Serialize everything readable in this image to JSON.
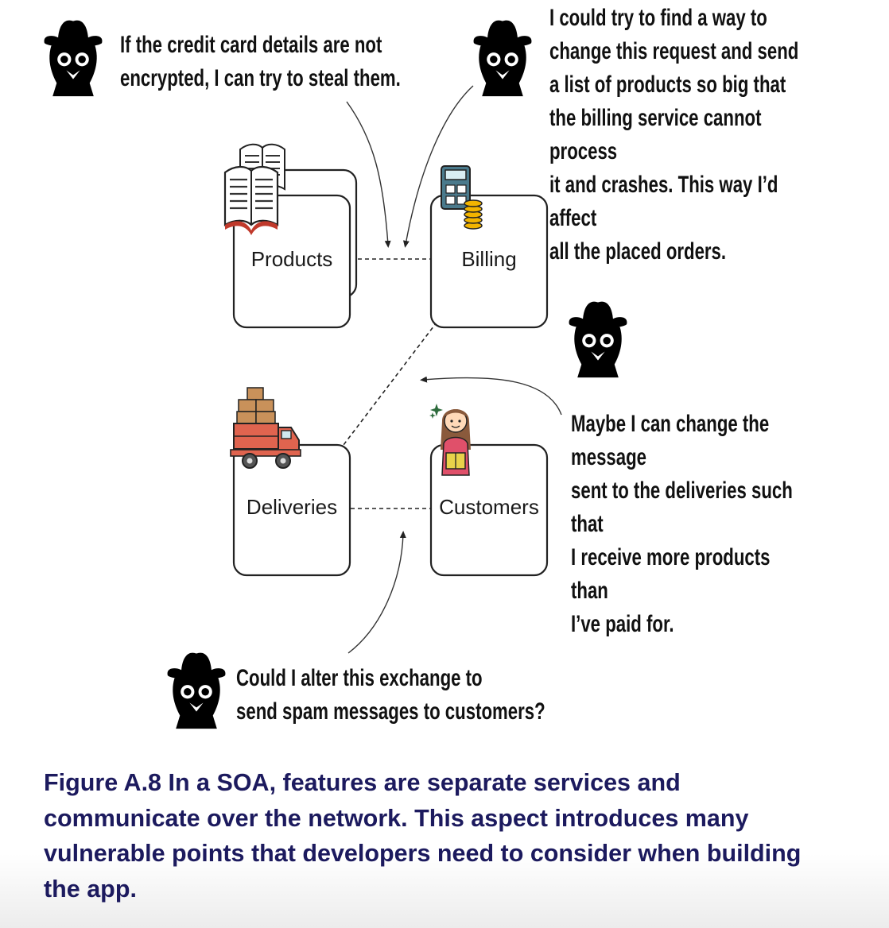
{
  "services": {
    "products": "Products",
    "billing": "Billing",
    "deliveries": "Deliveries",
    "customers": "Customers"
  },
  "notes": {
    "credit_card": "If the credit card details are not\nencrypted, I can try to steal them.",
    "billing_attack": "I could try to find a way to\nchange this request and send\na list of products so big that\nthe billing service cannot process\nit and crashes. This way I’d affect\nall the placed orders.",
    "deliveries_attack": "Maybe I can change the message\nsent to the deliveries such that\nI receive more products than\nI’ve paid for.",
    "spam_attack": "Could I alter this exchange to\nsend spam messages to customers?"
  },
  "icons": [
    "hacker-icon",
    "books-icon",
    "calculator-icon",
    "coins-icon",
    "truck-icon",
    "customer-icon",
    "sparkle-icon"
  ],
  "colors": {
    "caption": "#1c1a5e",
    "truck": "#e0644f",
    "boxes": "#c9915a",
    "coins": "#f2b400",
    "calculator": "#4a7a8c",
    "customer_shirt": "#e0506a"
  },
  "caption": "Figure A.8 In a SOA, features are separate services and communicate over the network. This aspect introduces many vulnerable points that developers need to consider when building the app."
}
